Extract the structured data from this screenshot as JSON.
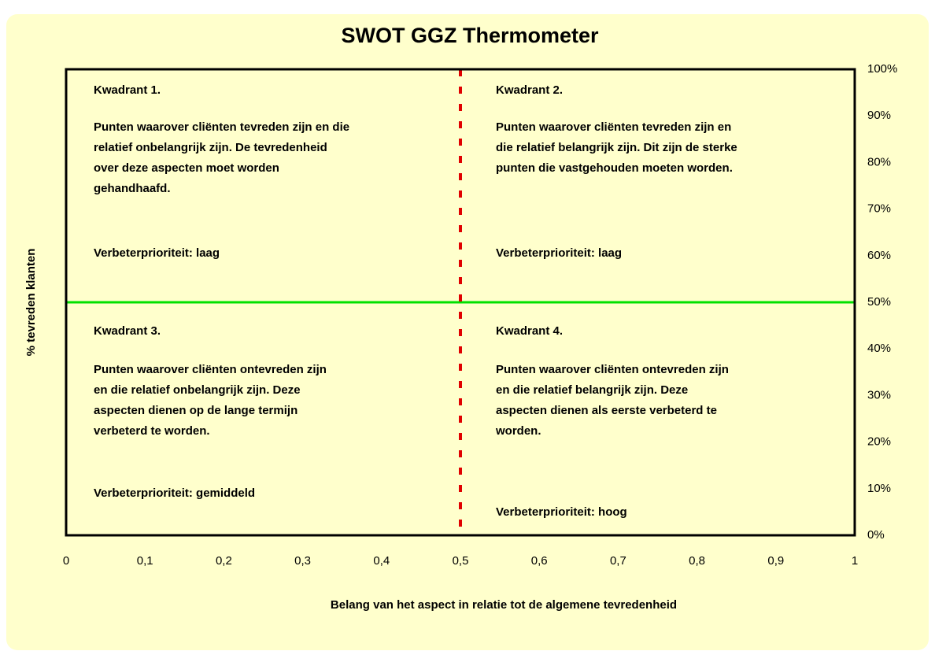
{
  "chart_data": {
    "type": "quadrant",
    "title": "SWOT GGZ Thermometer",
    "x_label": "Belang van het aspect in relatie tot de algemene tevredenheid",
    "y_label": "% tevreden klanten",
    "xlim": [
      0,
      1
    ],
    "xticks": [
      0,
      {
        "value": 0.1,
        "label": "0,1"
      },
      {
        "value": 0.2,
        "label": "0,2"
      },
      {
        "value": 0.3,
        "label": "0,3"
      },
      {
        "value": 0.4,
        "label": "0,4"
      },
      {
        "value": 0.5,
        "label": "0,5"
      },
      {
        "value": 0.6,
        "label": "0,6"
      },
      {
        "value": 0.7,
        "label": "0,7"
      },
      {
        "value": 0.8,
        "label": "0,8"
      },
      {
        "value": 0.9,
        "label": "0,9"
      },
      1
    ],
    "ylim": [
      0,
      100
    ],
    "yticks": [
      {
        "value": 0,
        "label": "0%"
      },
      {
        "value": 10,
        "label": "10%"
      },
      {
        "value": 20,
        "label": "20%"
      },
      {
        "value": 30,
        "label": "30%"
      },
      {
        "value": 40,
        "label": "40%"
      },
      {
        "value": 50,
        "label": "50%"
      },
      {
        "value": 60,
        "label": "60%"
      },
      {
        "value": 70,
        "label": "70%"
      },
      {
        "value": 80,
        "label": "80%"
      },
      {
        "value": 90,
        "label": "90%"
      },
      {
        "value": 100,
        "label": "100%"
      }
    ],
    "y_axis_side": "right",
    "divider_x": {
      "value": 0.5,
      "color": "#e00000"
    },
    "divider_y": {
      "value": 50,
      "color": "#00e000"
    },
    "quadrants": [
      {
        "title": "Kwadrant 1.",
        "lines": [
          "Punten waarover cliënten tevreden zijn en die",
          "relatief onbelangrijk zijn. De tevredenheid",
          "over deze aspecten moet worden",
          "gehandhaafd."
        ],
        "priority": "Verbeterprioriteit: laag"
      },
      {
        "title": "Kwadrant 2.",
        "lines": [
          "Punten waarover cliënten tevreden zijn en",
          "die relatief belangrijk zijn. Dit zijn de sterke",
          "punten die vastgehouden moeten worden."
        ],
        "priority": "Verbeterprioriteit: laag"
      },
      {
        "title": "Kwadrant 3.",
        "lines": [
          "Punten waarover cliënten ontevreden zijn",
          "en die relatief onbelangrijk zijn. Deze",
          "aspecten dienen op de lange termijn",
          "verbeterd te worden."
        ],
        "priority": "Verbeterprioriteit: gemiddeld"
      },
      {
        "title": "Kwadrant 4.",
        "lines": [
          "Punten waarover cliënten ontevreden zijn",
          "en die relatief belangrijk zijn. Deze",
          "aspecten dienen als eerste verbeterd te",
          "worden."
        ],
        "priority": "Verbeterprioriteit: hoog"
      }
    ]
  }
}
